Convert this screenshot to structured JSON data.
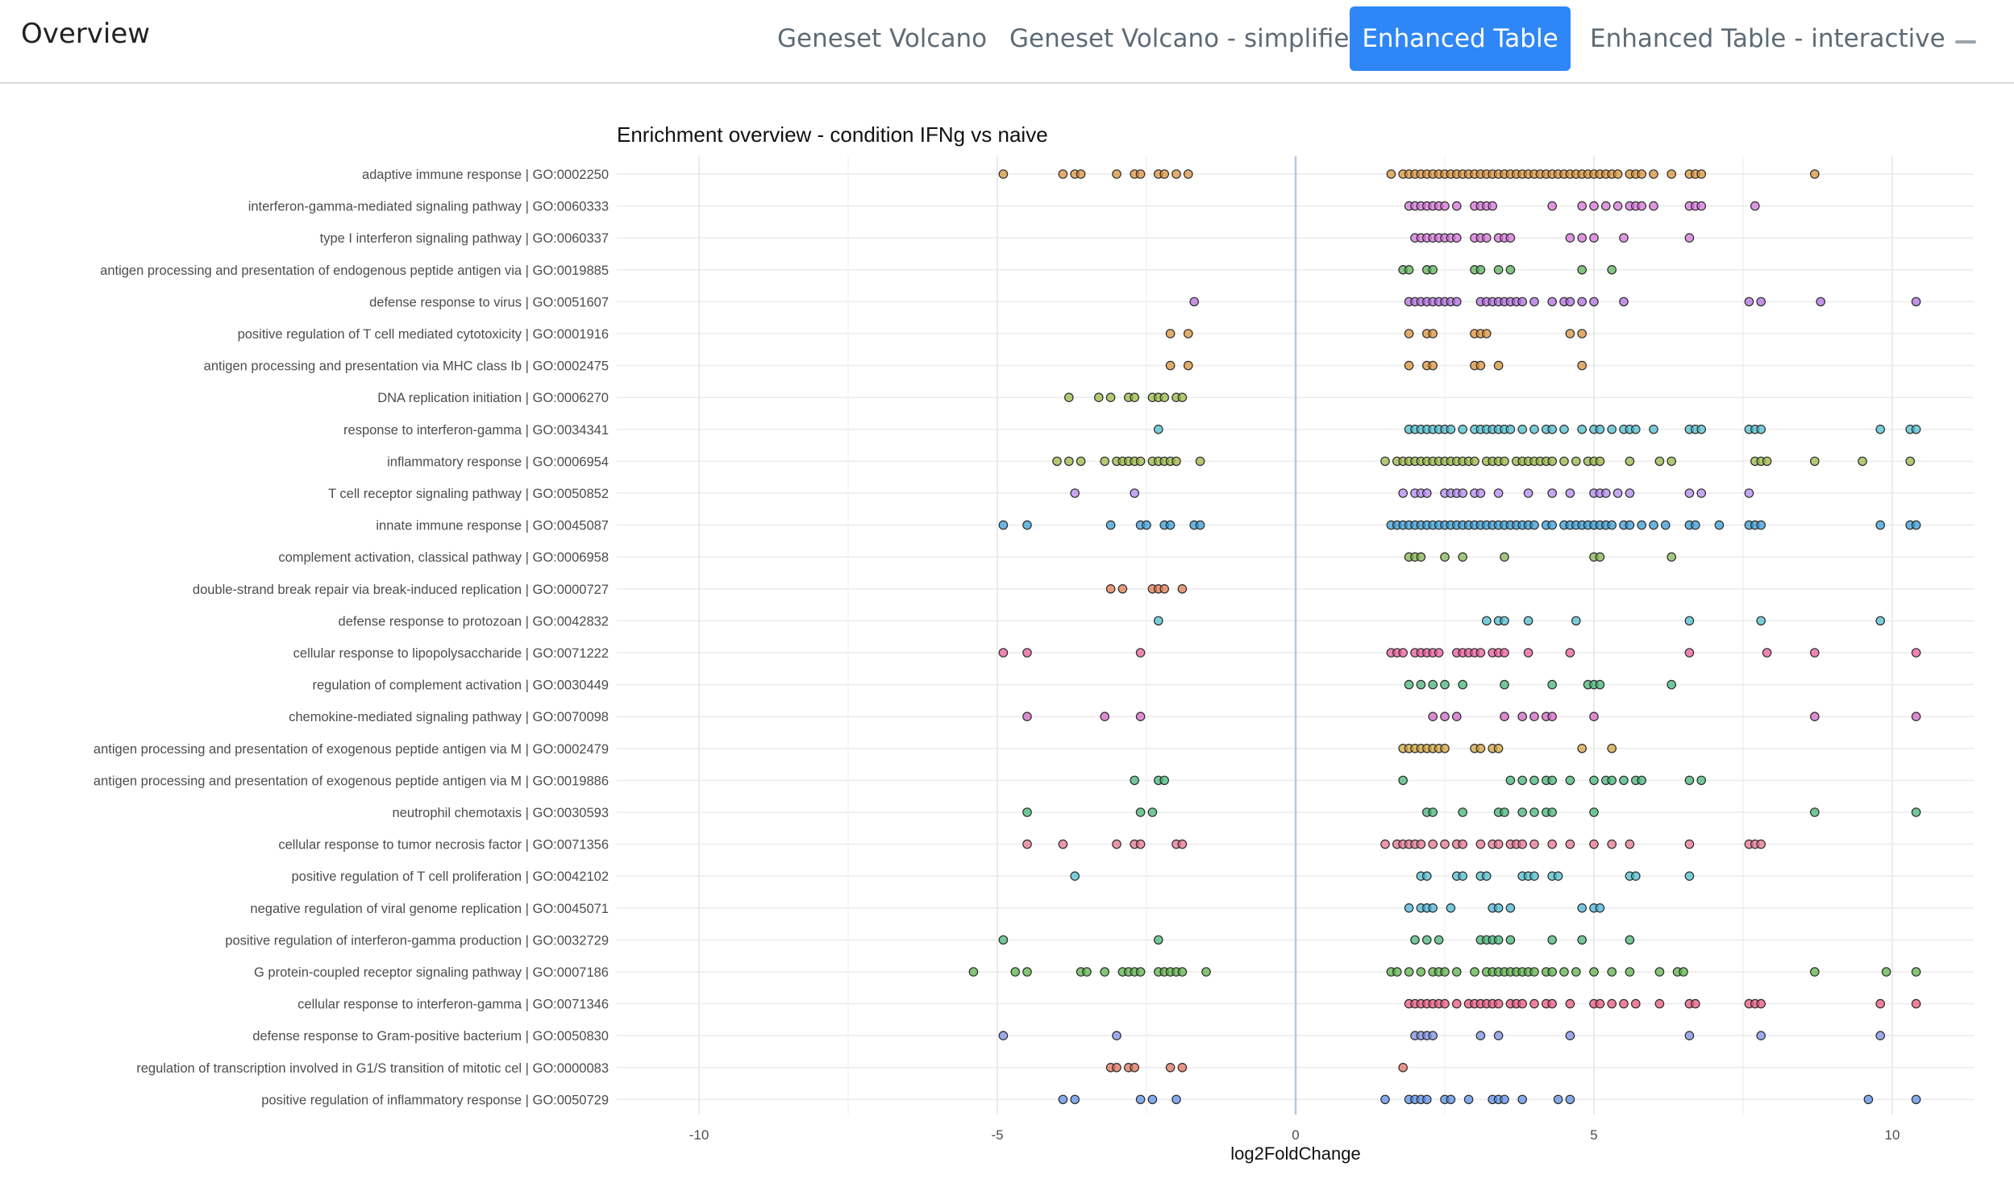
{
  "app": {
    "brand": "Overview"
  },
  "tabs": [
    {
      "label": "Geneset Volcano",
      "active": false
    },
    {
      "label": "Geneset Volcano - simplified",
      "active": false
    },
    {
      "label": "Enhanced Table",
      "active": true
    },
    {
      "label": "Enhanced Table - interactive",
      "active": false
    }
  ],
  "colors": {
    "accent": "#2f86f6",
    "zero_line": "#b3c6e6",
    "grid": "#ebebeb"
  },
  "chart_data": {
    "type": "scatter",
    "title": "Enrichment overview - condition IFNg vs naive",
    "xlabel": "log2FoldChange",
    "ylabel": "",
    "xlim": [
      -11,
      11.5
    ],
    "xticks": [
      -10,
      -5,
      0,
      5,
      10
    ],
    "grid": true,
    "legend": "none",
    "series": [
      {
        "label": "adaptive immune response | GO:0002250",
        "color": "#d9933b",
        "values": [
          -4.9,
          -3.9,
          -3.7,
          -3.6,
          -3.0,
          -2.7,
          -2.6,
          -2.3,
          -2.2,
          -2.0,
          -1.8,
          1.6,
          1.8,
          1.9,
          2.0,
          2.1,
          2.2,
          2.3,
          2.4,
          2.5,
          2.6,
          2.7,
          2.8,
          2.9,
          3.0,
          3.1,
          3.2,
          3.3,
          3.4,
          3.5,
          3.6,
          3.7,
          3.8,
          3.9,
          4.0,
          4.1,
          4.2,
          4.3,
          4.4,
          4.5,
          4.6,
          4.7,
          4.8,
          4.9,
          5.0,
          5.1,
          5.2,
          5.3,
          5.4,
          5.6,
          5.7,
          5.8,
          6.0,
          6.3,
          6.6,
          6.7,
          6.8,
          8.7
        ]
      },
      {
        "label": "interferon-gamma-mediated signaling pathway | GO:0060333",
        "color": "#d675d8",
        "values": [
          1.9,
          2.0,
          2.1,
          2.2,
          2.3,
          2.4,
          2.5,
          2.7,
          3.0,
          3.1,
          3.2,
          3.3,
          4.3,
          4.8,
          5.0,
          5.2,
          5.4,
          5.6,
          5.7,
          5.8,
          6.0,
          6.6,
          6.7,
          6.8,
          7.7
        ]
      },
      {
        "label": "type I interferon signaling pathway | GO:0060337",
        "color": "#d675d8",
        "values": [
          2.0,
          2.1,
          2.2,
          2.3,
          2.4,
          2.5,
          2.6,
          2.7,
          3.0,
          3.1,
          3.2,
          3.4,
          3.5,
          3.6,
          4.6,
          4.8,
          5.0,
          5.5,
          6.6
        ]
      },
      {
        "label": "antigen processing and presentation of endogenous peptide antigen via  | GO:0019885",
        "color": "#5fb25c",
        "values": [
          1.8,
          1.9,
          2.2,
          2.3,
          3.0,
          3.1,
          3.4,
          3.6,
          4.8,
          5.3
        ]
      },
      {
        "label": "defense response to virus | GO:0051607",
        "color": "#b26fdd",
        "values": [
          -1.7,
          1.9,
          2.0,
          2.1,
          2.2,
          2.3,
          2.4,
          2.5,
          2.6,
          2.7,
          3.1,
          3.2,
          3.3,
          3.4,
          3.5,
          3.6,
          3.7,
          3.8,
          4.0,
          4.3,
          4.5,
          4.6,
          4.8,
          5.0,
          5.5,
          7.6,
          7.8,
          8.8,
          10.4
        ]
      },
      {
        "label": "positive regulation of T cell mediated cytotoxicity | GO:0001916",
        "color": "#d9933b",
        "values": [
          -2.1,
          -1.8,
          1.9,
          2.2,
          2.3,
          3.0,
          3.1,
          3.2,
          4.6,
          4.8
        ]
      },
      {
        "label": "antigen processing and presentation via MHC class Ib | GO:0002475",
        "color": "#d9933b",
        "values": [
          -2.1,
          -1.8,
          1.9,
          2.2,
          2.3,
          3.0,
          3.1,
          3.4,
          4.8
        ]
      },
      {
        "label": "DNA replication initiation | GO:0006270",
        "color": "#9bb846",
        "values": [
          -3.8,
          -3.3,
          -3.1,
          -2.8,
          -2.7,
          -2.4,
          -2.3,
          -2.2,
          -2.0,
          -1.9
        ]
      },
      {
        "label": "response to interferon-gamma | GO:0034341",
        "color": "#4fbfcf",
        "values": [
          -2.3,
          1.9,
          2.0,
          2.1,
          2.2,
          2.3,
          2.4,
          2.5,
          2.6,
          2.8,
          3.0,
          3.1,
          3.2,
          3.3,
          3.4,
          3.5,
          3.6,
          3.8,
          4.0,
          4.2,
          4.3,
          4.5,
          4.8,
          5.0,
          5.1,
          5.3,
          5.5,
          5.6,
          5.7,
          6.0,
          6.6,
          6.7,
          6.8,
          7.6,
          7.7,
          7.8,
          9.8,
          10.3,
          10.4
        ]
      },
      {
        "label": "inflammatory response | GO:0006954",
        "color": "#9bb846",
        "values": [
          -4.0,
          -3.8,
          -3.6,
          -3.2,
          -3.0,
          -2.9,
          -2.8,
          -2.7,
          -2.6,
          -2.4,
          -2.3,
          -2.2,
          -2.1,
          -2.0,
          -1.6,
          1.5,
          1.7,
          1.8,
          1.9,
          2.0,
          2.1,
          2.2,
          2.3,
          2.4,
          2.5,
          2.6,
          2.7,
          2.8,
          2.9,
          3.0,
          3.2,
          3.3,
          3.4,
          3.5,
          3.7,
          3.8,
          3.9,
          4.0,
          4.1,
          4.2,
          4.3,
          4.5,
          4.7,
          4.9,
          5.0,
          5.1,
          5.6,
          6.1,
          6.3,
          7.7,
          7.8,
          7.9,
          8.7,
          9.5,
          10.3
        ]
      },
      {
        "label": "T cell receptor signaling pathway | GO:0050852",
        "color": "#b38af0",
        "values": [
          -3.7,
          -2.7,
          1.8,
          2.0,
          2.1,
          2.2,
          2.5,
          2.6,
          2.7,
          2.8,
          3.0,
          3.1,
          3.4,
          3.9,
          4.3,
          4.6,
          5.0,
          5.1,
          5.2,
          5.4,
          5.6,
          6.6,
          6.8,
          7.6
        ]
      },
      {
        "label": "innate immune response | GO:0045087",
        "color": "#3a9ed6",
        "values": [
          -4.9,
          -4.5,
          -3.1,
          -2.6,
          -2.5,
          -2.2,
          -2.1,
          -1.7,
          -1.6,
          1.6,
          1.7,
          1.8,
          1.9,
          2.0,
          2.1,
          2.2,
          2.3,
          2.4,
          2.5,
          2.6,
          2.7,
          2.8,
          2.9,
          3.0,
          3.1,
          3.2,
          3.3,
          3.4,
          3.5,
          3.6,
          3.7,
          3.8,
          3.9,
          4.0,
          4.2,
          4.3,
          4.5,
          4.6,
          4.7,
          4.8,
          4.9,
          5.0,
          5.1,
          5.2,
          5.3,
          5.5,
          5.6,
          5.8,
          6.0,
          6.2,
          6.6,
          6.7,
          7.1,
          7.6,
          7.7,
          7.8,
          9.8,
          10.3,
          10.4
        ]
      },
      {
        "label": "complement activation, classical pathway | GO:0006958",
        "color": "#86b454",
        "values": [
          1.9,
          2.0,
          2.1,
          2.5,
          2.8,
          3.5,
          5.0,
          5.1,
          6.3
        ]
      },
      {
        "label": "double-strand break repair via break-induced replication | GO:0000727",
        "color": "#e0794e",
        "values": [
          -3.1,
          -2.9,
          -2.4,
          -2.3,
          -2.2,
          -1.9
        ]
      },
      {
        "label": "defense response to protozoan | GO:0042832",
        "color": "#4fbfcf",
        "values": [
          -2.3,
          3.2,
          3.4,
          3.5,
          3.9,
          4.7,
          6.6,
          7.8,
          9.8
        ]
      },
      {
        "label": "cellular response to lipopolysaccharide | GO:0071222",
        "color": "#e95c9c",
        "values": [
          -4.9,
          -4.5,
          -2.6,
          1.6,
          1.7,
          1.8,
          2.0,
          2.1,
          2.2,
          2.3,
          2.4,
          2.7,
          2.8,
          2.9,
          3.0,
          3.1,
          3.3,
          3.4,
          3.5,
          3.9,
          4.6,
          6.6,
          7.9,
          8.7,
          10.4
        ]
      },
      {
        "label": "regulation of complement activation | GO:0030449",
        "color": "#46b578",
        "values": [
          1.9,
          2.1,
          2.3,
          2.5,
          2.8,
          3.5,
          4.3,
          4.9,
          5.0,
          5.1,
          6.3
        ]
      },
      {
        "label": "chemokine-mediated signaling pathway | GO:0070098",
        "color": "#d068c4",
        "values": [
          -4.5,
          -3.2,
          -2.6,
          2.3,
          2.5,
          2.7,
          3.5,
          3.8,
          4.0,
          4.2,
          4.3,
          5.0,
          8.7,
          10.4
        ]
      },
      {
        "label": "antigen processing and presentation of exogenous peptide antigen via M | GO:0002479",
        "color": "#d1a43f",
        "values": [
          1.8,
          1.9,
          2.0,
          2.1,
          2.2,
          2.3,
          2.4,
          2.5,
          3.0,
          3.1,
          3.3,
          3.4,
          4.8,
          5.3
        ]
      },
      {
        "label": "antigen processing and presentation of exogenous peptide antigen via M | GO:0019886",
        "color": "#46b578",
        "values": [
          -2.7,
          -2.3,
          -2.2,
          1.8,
          3.6,
          3.8,
          4.0,
          4.2,
          4.3,
          4.6,
          5.0,
          5.2,
          5.3,
          5.5,
          5.7,
          5.8,
          6.6,
          6.8
        ]
      },
      {
        "label": "neutrophil chemotaxis | GO:0030593",
        "color": "#46b578",
        "values": [
          -4.5,
          -2.6,
          -2.4,
          2.2,
          2.3,
          2.8,
          3.4,
          3.5,
          3.8,
          4.0,
          4.2,
          4.3,
          5.0,
          8.7,
          10.4
        ]
      },
      {
        "label": "cellular response to tumor necrosis factor | GO:0071356",
        "color": "#e57591",
        "values": [
          -4.5,
          -3.9,
          -3.0,
          -2.7,
          -2.6,
          -2.0,
          -1.9,
          1.5,
          1.7,
          1.8,
          1.9,
          2.0,
          2.1,
          2.3,
          2.5,
          2.7,
          2.8,
          3.1,
          3.3,
          3.4,
          3.6,
          3.7,
          3.8,
          4.0,
          4.3,
          4.6,
          5.0,
          5.3,
          5.6,
          6.6,
          7.6,
          7.7,
          7.8
        ]
      },
      {
        "label": "positive regulation of T cell proliferation | GO:0042102",
        "color": "#4fbfcf",
        "values": [
          -3.7,
          2.1,
          2.2,
          2.7,
          2.8,
          3.1,
          3.2,
          3.8,
          3.9,
          4.0,
          4.3,
          4.4,
          5.6,
          5.7,
          6.6
        ]
      },
      {
        "label": "negative regulation of viral genome replication | GO:0045071",
        "color": "#4ab5d6",
        "values": [
          1.9,
          2.1,
          2.2,
          2.3,
          2.6,
          3.3,
          3.4,
          3.6,
          4.8,
          5.0,
          5.1
        ]
      },
      {
        "label": "positive regulation of interferon-gamma production | GO:0032729",
        "color": "#46b578",
        "values": [
          -4.9,
          -2.3,
          2.0,
          2.2,
          2.4,
          3.1,
          3.2,
          3.3,
          3.4,
          3.6,
          4.3,
          4.8,
          5.6
        ]
      },
      {
        "label": "G protein-coupled receptor signaling pathway | GO:0007186",
        "color": "#5cb44a",
        "values": [
          -5.4,
          -4.7,
          -4.5,
          -3.6,
          -3.5,
          -3.2,
          -2.9,
          -2.8,
          -2.7,
          -2.6,
          -2.3,
          -2.2,
          -2.1,
          -2.0,
          -1.9,
          -1.5,
          1.6,
          1.7,
          1.9,
          2.1,
          2.3,
          2.4,
          2.5,
          2.7,
          3.0,
          3.2,
          3.3,
          3.4,
          3.5,
          3.6,
          3.7,
          3.8,
          3.9,
          4.0,
          4.2,
          4.3,
          4.5,
          4.7,
          5.0,
          5.3,
          5.6,
          6.1,
          6.4,
          6.5,
          8.7,
          9.9,
          10.4
        ]
      },
      {
        "label": "cellular response to interferon-gamma | GO:0071346",
        "color": "#e85880",
        "values": [
          1.9,
          2.0,
          2.1,
          2.2,
          2.3,
          2.4,
          2.5,
          2.7,
          2.9,
          3.0,
          3.1,
          3.2,
          3.3,
          3.4,
          3.6,
          3.7,
          3.8,
          4.0,
          4.2,
          4.3,
          4.6,
          5.0,
          5.1,
          5.3,
          5.5,
          5.7,
          6.1,
          6.6,
          6.7,
          7.6,
          7.7,
          7.8,
          9.8,
          10.4
        ]
      },
      {
        "label": "defense response to Gram-positive bacterium | GO:0050830",
        "color": "#7c8fe3",
        "values": [
          -4.9,
          -3.0,
          2.0,
          2.1,
          2.2,
          2.3,
          3.1,
          3.4,
          4.6,
          6.6,
          7.8,
          9.8
        ]
      },
      {
        "label": "regulation of transcription involved in G1/S transition of mitotic cel | GO:0000083",
        "color": "#e0715e",
        "values": [
          -3.1,
          -3.0,
          -2.8,
          -2.7,
          -2.1,
          -1.9,
          1.8
        ]
      },
      {
        "label": "positive regulation of inflammatory response | GO:0050729",
        "color": "#5b8fe8",
        "values": [
          -3.9,
          -3.7,
          -2.6,
          -2.4,
          -2.0,
          1.5,
          1.9,
          2.0,
          2.1,
          2.2,
          2.5,
          2.6,
          2.9,
          3.3,
          3.4,
          3.5,
          3.8,
          4.4,
          4.6,
          9.6,
          10.4
        ]
      }
    ]
  }
}
